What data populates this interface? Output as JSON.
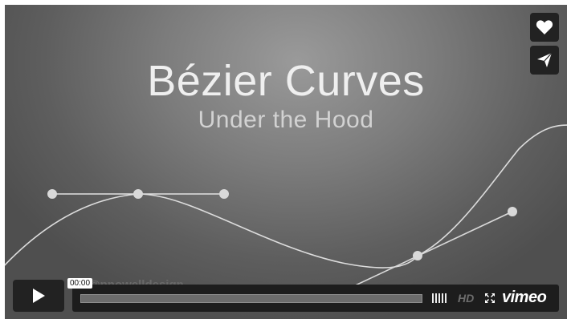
{
  "video": {
    "title": "Bézier Curves",
    "subtitle": "Under the Hood",
    "watermark": "@pnowelldesign"
  },
  "side_buttons": [
    {
      "icon": "heart-icon"
    },
    {
      "icon": "send-icon"
    }
  ],
  "controls": {
    "play_icon": "play-icon",
    "timecode": "00:00",
    "progress_fraction": 0,
    "hd_label": "HD",
    "logo": "vimeo"
  },
  "colors": {
    "background": "#5e5e5e",
    "control_bg": "#222222",
    "text": "#efefef"
  }
}
